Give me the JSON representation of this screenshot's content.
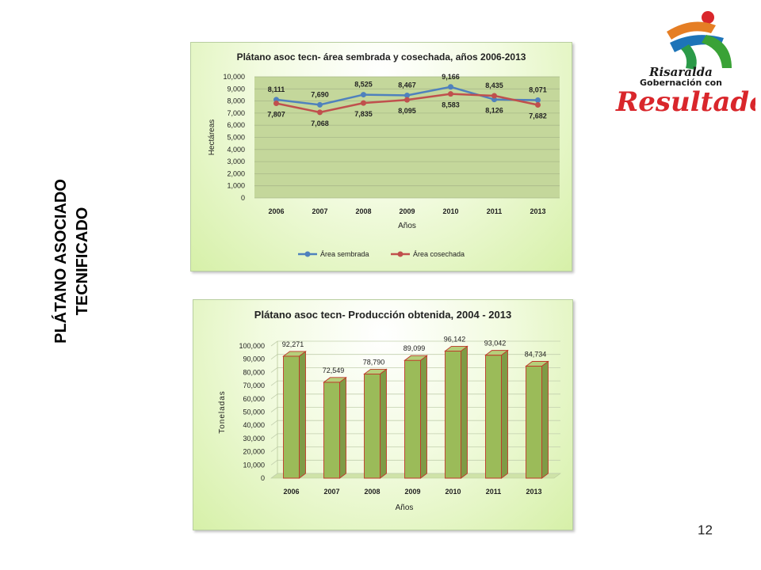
{
  "slide": {
    "side_title_line1": "PLÁTANO ASOCIADO",
    "side_title_line2": "TECNIFICADO",
    "page_number": "12",
    "logo": {
      "line1": "Risaralda",
      "line2": "Gobernación con",
      "line3": "Resultados"
    }
  },
  "chart_data": [
    {
      "type": "line",
      "title": "Plátano asoc tecn- área sembrada y cosechada, años 2006-2013",
      "xlabel": "Años",
      "ylabel": "Hectáreas",
      "categories": [
        "2006",
        "2007",
        "2008",
        "2009",
        "2010",
        "2011",
        "2013"
      ],
      "ylim": [
        0,
        10000
      ],
      "yticks": [
        "0",
        "1,000",
        "2,000",
        "3,000",
        "4,000",
        "5,000",
        "6,000",
        "7,000",
        "8,000",
        "9,000",
        "10,000"
      ],
      "grid": true,
      "legend": "bottom",
      "series": [
        {
          "name": "Área sembrada",
          "color": "#4f81bd",
          "values": [
            8111,
            7690,
            8525,
            8467,
            9166,
            8126,
            8071
          ],
          "labels": [
            "8,111",
            "7,690",
            "8,525",
            "8,467",
            "9,166",
            "8,126",
            "8,071"
          ]
        },
        {
          "name": "Área cosechada",
          "color": "#c0504d",
          "values": [
            7807,
            7068,
            7835,
            8095,
            8583,
            8435,
            7682
          ],
          "labels": [
            "7,807",
            "7,068",
            "7,835",
            "8,095",
            "8,583",
            "8,435",
            "7,682"
          ]
        }
      ]
    },
    {
      "type": "bar",
      "title": "Plátano asoc tecn- Producción obtenida, 2004 - 2013",
      "xlabel": "Años",
      "ylabel": "Toneladas",
      "categories": [
        "2006",
        "2007",
        "2008",
        "2009",
        "2010",
        "2011",
        "2013"
      ],
      "ylim": [
        0,
        100000
      ],
      "yticks": [
        "0",
        "10,000",
        "20,000",
        "30,000",
        "40,000",
        "50,000",
        "60,000",
        "70,000",
        "80,000",
        "90,000",
        "100,000"
      ],
      "grid": true,
      "values": [
        92271,
        72549,
        78790,
        89099,
        96142,
        93042,
        84734
      ],
      "labels": [
        "92,271",
        "72,549",
        "78,790",
        "89,099",
        "96,142",
        "93,042",
        "84,734"
      ],
      "bar_color": "#9bbb59",
      "edge_color": "#c0392b"
    }
  ]
}
